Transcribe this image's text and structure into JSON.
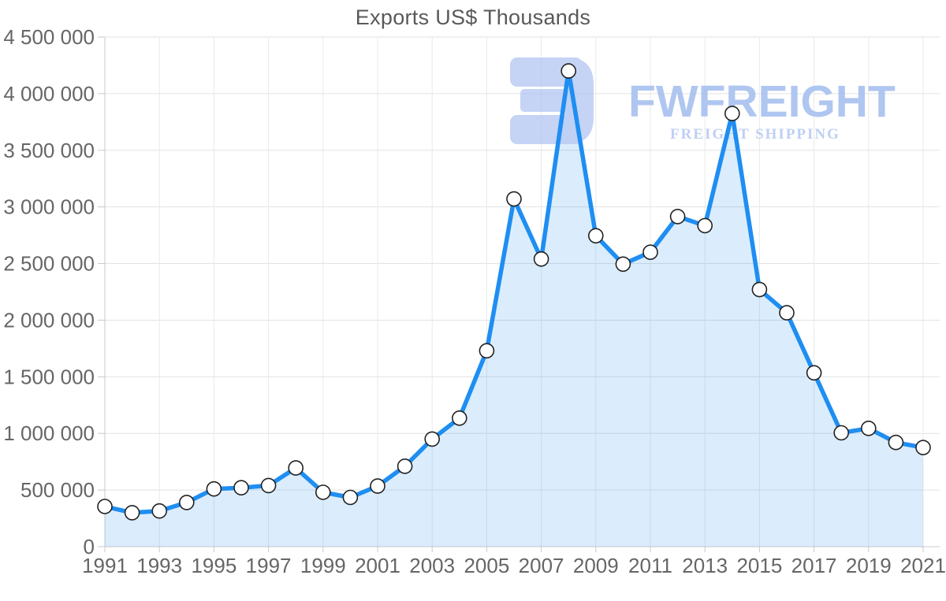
{
  "title": "Exports US$ Thousands",
  "watermark": {
    "brand": "FWFREIGHT",
    "tagline": "FREIGHT SHIPPING",
    "glyph": "fwfreight-logo",
    "glyph_color": "#b7c9f3",
    "brand_color": "#a7c0ef",
    "tagline_color": "#b3c7f2"
  },
  "chart_data": {
    "type": "area",
    "title": "Exports US$ Thousands",
    "x": [
      1991,
      1992,
      1993,
      1994,
      1995,
      1996,
      1997,
      1998,
      1999,
      2000,
      2001,
      2002,
      2003,
      2004,
      2005,
      2006,
      2007,
      2008,
      2009,
      2010,
      2011,
      2012,
      2013,
      2014,
      2015,
      2016,
      2017,
      2018,
      2019,
      2020,
      2021
    ],
    "series": [
      {
        "name": "Exports US$ Thousands",
        "values": [
          355000,
          300000,
          315000,
          390000,
          510000,
          520000,
          540000,
          695000,
          480000,
          435000,
          535000,
          710000,
          950000,
          1135000,
          1730000,
          3070000,
          2540000,
          4200000,
          2745000,
          2495000,
          2600000,
          2915000,
          2835000,
          3825000,
          2270000,
          2065000,
          1535000,
          1005000,
          1045000,
          920000,
          875000
        ]
      }
    ],
    "x_tick_labels": [
      "1991",
      "1993",
      "1995",
      "1997",
      "1999",
      "2001",
      "2003",
      "2005",
      "2007",
      "2009",
      "2011",
      "2013",
      "2015",
      "2017",
      "2019",
      "2021"
    ],
    "y_tick_values": [
      0,
      500000,
      1000000,
      1500000,
      2000000,
      2500000,
      3000000,
      3500000,
      4000000,
      4500000
    ],
    "y_tick_labels": [
      "0",
      "500 000",
      "1 000 000",
      "1 500 000",
      "2 000 000",
      "2 500 000",
      "3 000 000",
      "3 500 000",
      "4 000 000",
      "4 500 000"
    ],
    "ylim": [
      0,
      4500000
    ],
    "xlabel": "",
    "ylabel": "",
    "grid": true,
    "legend": "none",
    "colors": {
      "line": "#1f8ef2",
      "area_fill": "rgba(31,142,242,0.16)",
      "marker_fill": "#ffffff",
      "marker_stroke": "#222222",
      "grid_h": "#e2e2e2",
      "grid_v": "#e9e9e9",
      "axis_line": "#c9c9c9",
      "tick_text": "#666666",
      "title_text": "#595959"
    }
  }
}
